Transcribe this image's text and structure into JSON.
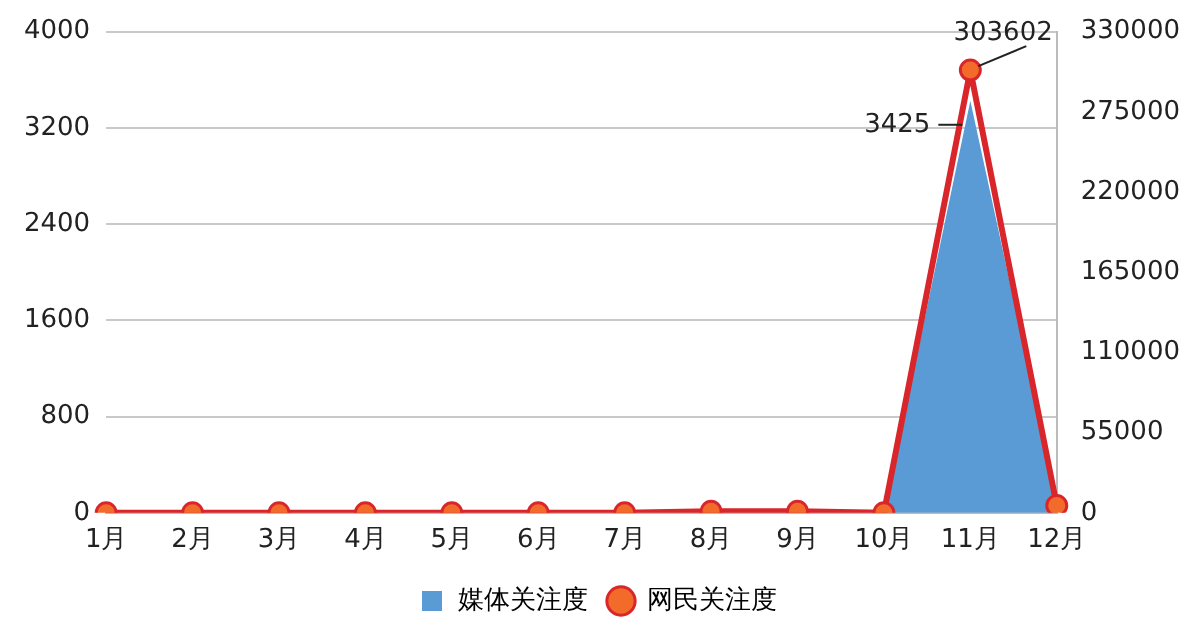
{
  "chart_data": {
    "type": "area",
    "categories": [
      "1月",
      "2月",
      "3月",
      "4月",
      "5月",
      "6月",
      "7月",
      "8月",
      "9月",
      "10月",
      "11月",
      "12月"
    ],
    "series": [
      {
        "name": "媒体关注度",
        "type": "area",
        "color": "#5b9bd5",
        "values": [
          0,
          0,
          0,
          0,
          0,
          0,
          0,
          0,
          0,
          0,
          3425,
          120
        ],
        "value_labels": [
          null,
          null,
          null,
          null,
          null,
          null,
          null,
          null,
          null,
          null,
          "3425",
          null
        ]
      },
      {
        "name": "网民关注度",
        "type": "line",
        "axis": "y2",
        "marker": "circle",
        "color": "#d9262a",
        "values": [
          0,
          0,
          0,
          0,
          0,
          0,
          0,
          1000,
          1000,
          0,
          303602,
          5000
        ],
        "value_labels": [
          null,
          null,
          null,
          null,
          null,
          null,
          null,
          null,
          null,
          null,
          "303602",
          null
        ]
      }
    ],
    "ylim": [
      0,
      4000
    ],
    "yticks": [
      0,
      800,
      1600,
      2400,
      3200,
      4000
    ],
    "y2lim": [
      0,
      330000
    ],
    "y2ticks": [
      0,
      55000,
      110000,
      165000,
      220000,
      275000,
      330000
    ],
    "grid": "y",
    "legend": "bottom",
    "line_style": "solid"
  }
}
